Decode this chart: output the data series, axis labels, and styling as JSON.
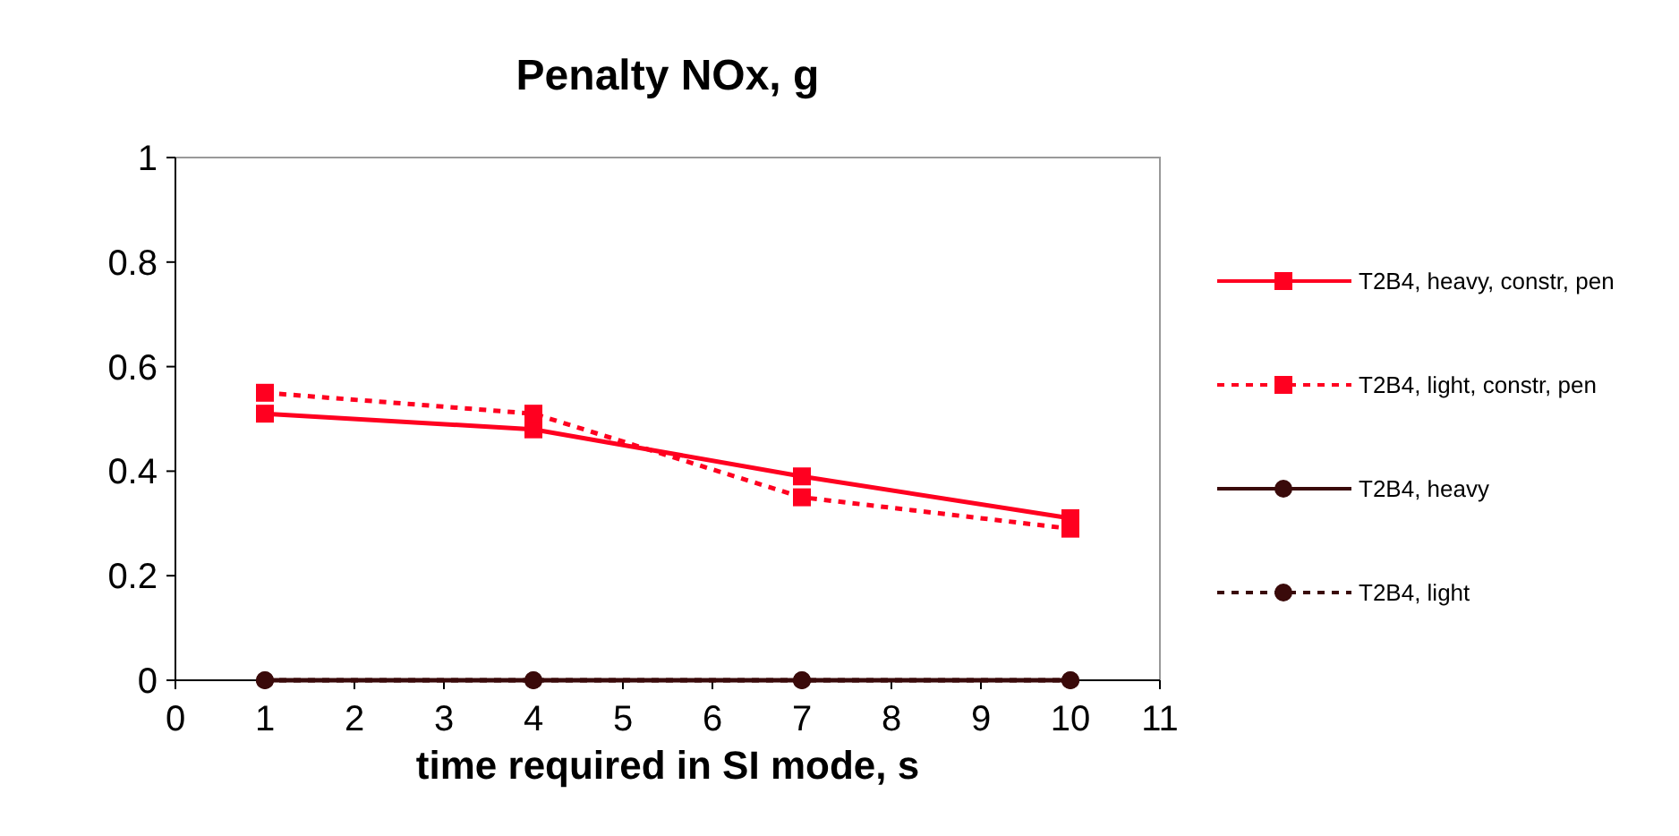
{
  "chart_data": {
    "type": "line",
    "title": "Penalty NOx, g",
    "xlabel": "time required in SI mode, s",
    "x": [
      1,
      4,
      7,
      10
    ],
    "xlim": [
      0,
      11
    ],
    "xticks": [
      0,
      1,
      2,
      3,
      4,
      5,
      6,
      7,
      8,
      9,
      10,
      11
    ],
    "ylim": [
      0,
      1
    ],
    "yticks": [
      0,
      0.2,
      0.4,
      0.6,
      0.8,
      1
    ],
    "grid": false,
    "legend": "right",
    "series": [
      {
        "name": "T2B4, heavy, constr, pen",
        "color": "#ff0020",
        "values": [
          0.51,
          0.48,
          0.39,
          0.31
        ],
        "marker": "square",
        "line_style": "solid"
      },
      {
        "name": "T2B4, light, constr, pen",
        "color": "#ff0020",
        "values": [
          0.55,
          0.51,
          0.35,
          0.29
        ],
        "marker": "square",
        "line_style": "dashed"
      },
      {
        "name": "T2B4, heavy",
        "color": "#3a0a0a",
        "values": [
          0,
          0,
          0,
          0
        ],
        "marker": "circle",
        "line_style": "solid"
      },
      {
        "name": "T2B4, light",
        "color": "#3a0a0a",
        "values": [
          0,
          0,
          0,
          0
        ],
        "marker": "circle",
        "line_style": "dashed"
      }
    ]
  }
}
